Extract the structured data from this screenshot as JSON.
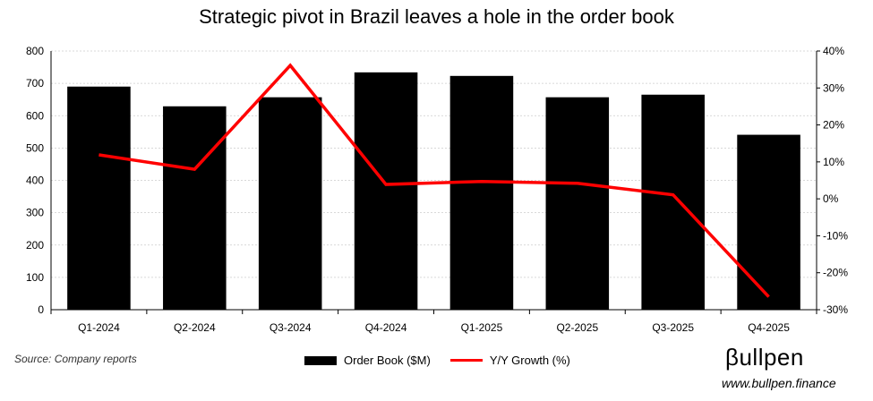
{
  "chart_data": {
    "type": "bar+line",
    "title": "Strategic pivot in Brazil leaves a hole in the order book",
    "categories": [
      "Q1-2024",
      "Q2-2024",
      "Q3-2024",
      "Q4-2024",
      "Q1-2025",
      "Q2-2025",
      "Q3-2025",
      "Q4-2025"
    ],
    "series": [
      {
        "name": "Order Book ($M)",
        "type": "bar",
        "axis": "left",
        "color": "#000000",
        "values": [
          690,
          629,
          657,
          734,
          723,
          657,
          665,
          541
        ]
      },
      {
        "name": "Y/Y Growth (%)",
        "type": "line",
        "axis": "right",
        "color": "#ff0000",
        "values": [
          11.9,
          8.0,
          36.1,
          3.9,
          4.7,
          4.2,
          1.1,
          -26.5
        ]
      }
    ],
    "ylim": [
      0,
      800
    ],
    "y_ticks": [
      "0",
      "100",
      "200",
      "300",
      "400",
      "500",
      "600",
      "700",
      "800"
    ],
    "y2lim": [
      -30,
      40
    ],
    "y2_ticks": [
      "-30%",
      "-20%",
      "-10%",
      "0%",
      "10%",
      "20%",
      "30%",
      "40%"
    ],
    "grid": true,
    "legend": "bottom"
  },
  "source": "Source: Company reports",
  "logo": "βullpen",
  "url": "www.bullpen.finance"
}
